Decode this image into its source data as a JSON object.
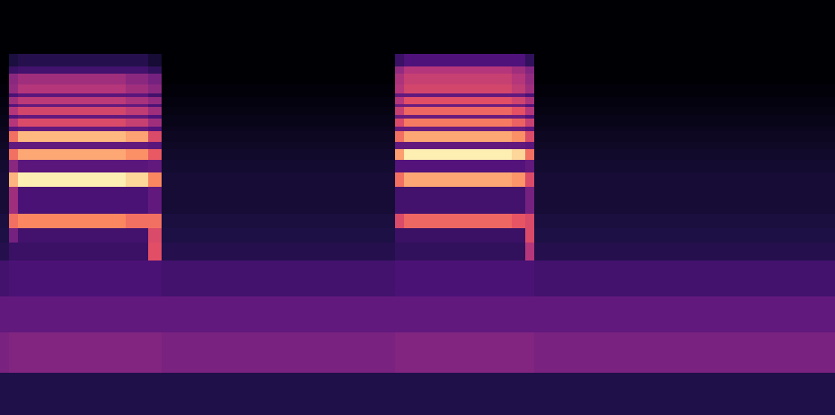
{
  "chart_data": {
    "type": "heatmap",
    "x": [
      0,
      10,
      20,
      60,
      100,
      140,
      165,
      180,
      190,
      300,
      440,
      450,
      490,
      530,
      570,
      585,
      595,
      700,
      800,
      930
    ],
    "y": [
      0,
      47,
      92,
      132,
      172,
      192,
      208,
      224,
      254,
      270,
      284,
      296,
      304,
      316,
      321,
      330,
      334,
      343,
      346,
      354,
      358,
      368,
      380,
      388,
      402,
      462
    ],
    "z": [
      [
        0.14,
        0.14,
        0.14,
        0.14,
        0.14,
        0.14,
        0.14,
        0.14,
        0.14,
        0.14,
        0.14,
        0.14,
        0.14,
        0.14,
        0.14,
        0.14,
        0.14,
        0.14,
        0.14
      ],
      [
        0.36,
        0.38,
        0.38,
        0.38,
        0.38,
        0.38,
        0.38,
        0.36,
        0.36,
        0.36,
        0.38,
        0.38,
        0.38,
        0.38,
        0.38,
        0.38,
        0.36,
        0.36,
        0.36
      ],
      [
        0.3,
        0.3,
        0.3,
        0.3,
        0.3,
        0.3,
        0.3,
        0.3,
        0.3,
        0.3,
        0.3,
        0.3,
        0.3,
        0.3,
        0.3,
        0.3,
        0.3,
        0.3,
        0.3
      ],
      [
        0.22,
        0.24,
        0.24,
        0.24,
        0.24,
        0.24,
        0.24,
        0.22,
        0.22,
        0.22,
        0.24,
        0.24,
        0.24,
        0.24,
        0.24,
        0.24,
        0.22,
        0.22,
        0.22
      ],
      [
        0.15,
        0.2,
        0.2,
        0.2,
        0.2,
        0.2,
        0.62,
        0.15,
        0.15,
        0.15,
        0.18,
        0.18,
        0.18,
        0.18,
        0.18,
        0.5,
        0.15,
        0.15,
        0.15
      ],
      [
        0.13,
        0.35,
        0.22,
        0.22,
        0.22,
        0.22,
        0.6,
        0.13,
        0.13,
        0.13,
        0.2,
        0.2,
        0.2,
        0.2,
        0.2,
        0.6,
        0.13,
        0.13,
        0.13
      ],
      [
        0.12,
        0.7,
        0.75,
        0.75,
        0.75,
        0.7,
        0.7,
        0.12,
        0.12,
        0.12,
        0.6,
        0.68,
        0.68,
        0.68,
        0.64,
        0.6,
        0.12,
        0.12,
        0.12
      ],
      [
        0.1,
        0.45,
        0.24,
        0.24,
        0.24,
        0.24,
        0.3,
        0.1,
        0.1,
        0.1,
        0.22,
        0.22,
        0.22,
        0.22,
        0.22,
        0.35,
        0.1,
        0.1,
        0.1
      ],
      [
        0.1,
        0.85,
        0.97,
        0.97,
        0.97,
        0.92,
        0.75,
        0.1,
        0.1,
        0.1,
        0.7,
        0.82,
        0.82,
        0.82,
        0.78,
        0.6,
        0.1,
        0.1,
        0.1
      ],
      [
        0.09,
        0.4,
        0.28,
        0.28,
        0.28,
        0.28,
        0.3,
        0.09,
        0.09,
        0.09,
        0.26,
        0.26,
        0.26,
        0.26,
        0.26,
        0.3,
        0.09,
        0.09,
        0.09
      ],
      [
        0.08,
        0.7,
        0.82,
        0.82,
        0.82,
        0.77,
        0.65,
        0.08,
        0.08,
        0.08,
        0.8,
        0.97,
        0.97,
        0.97,
        0.92,
        0.7,
        0.08,
        0.08,
        0.08
      ],
      [
        0.07,
        0.3,
        0.3,
        0.3,
        0.3,
        0.3,
        0.28,
        0.07,
        0.07,
        0.07,
        0.3,
        0.3,
        0.3,
        0.3,
        0.3,
        0.28,
        0.07,
        0.07,
        0.07
      ],
      [
        0.06,
        0.7,
        0.86,
        0.86,
        0.86,
        0.81,
        0.6,
        0.06,
        0.06,
        0.06,
        0.7,
        0.82,
        0.82,
        0.82,
        0.77,
        0.6,
        0.06,
        0.06,
        0.06
      ],
      [
        0.05,
        0.28,
        0.3,
        0.3,
        0.3,
        0.3,
        0.26,
        0.05,
        0.05,
        0.05,
        0.32,
        0.32,
        0.32,
        0.32,
        0.32,
        0.28,
        0.05,
        0.05,
        0.05
      ],
      [
        0.04,
        0.5,
        0.6,
        0.6,
        0.6,
        0.55,
        0.45,
        0.04,
        0.04,
        0.04,
        0.6,
        0.72,
        0.72,
        0.72,
        0.67,
        0.55,
        0.04,
        0.04,
        0.04
      ],
      [
        0.04,
        0.26,
        0.3,
        0.3,
        0.3,
        0.3,
        0.25,
        0.04,
        0.04,
        0.04,
        0.32,
        0.32,
        0.32,
        0.32,
        0.32,
        0.26,
        0.04,
        0.04,
        0.04
      ],
      [
        0.03,
        0.5,
        0.58,
        0.58,
        0.58,
        0.53,
        0.45,
        0.03,
        0.03,
        0.03,
        0.55,
        0.68,
        0.68,
        0.68,
        0.63,
        0.5,
        0.03,
        0.03,
        0.03
      ],
      [
        0.02,
        0.26,
        0.3,
        0.3,
        0.3,
        0.3,
        0.24,
        0.02,
        0.02,
        0.02,
        0.32,
        0.32,
        0.32,
        0.32,
        0.32,
        0.25,
        0.02,
        0.02,
        0.02
      ],
      [
        0.02,
        0.45,
        0.52,
        0.52,
        0.52,
        0.47,
        0.42,
        0.02,
        0.02,
        0.02,
        0.5,
        0.62,
        0.62,
        0.62,
        0.57,
        0.48,
        0.02,
        0.02,
        0.02
      ],
      [
        0.01,
        0.24,
        0.28,
        0.28,
        0.28,
        0.28,
        0.22,
        0.01,
        0.01,
        0.01,
        0.3,
        0.3,
        0.3,
        0.3,
        0.3,
        0.24,
        0.01,
        0.01,
        0.01
      ],
      [
        0.01,
        0.42,
        0.5,
        0.5,
        0.5,
        0.45,
        0.4,
        0.01,
        0.01,
        0.01,
        0.5,
        0.58,
        0.58,
        0.58,
        0.53,
        0.45,
        0.01,
        0.01,
        0.01
      ],
      [
        0,
        0.4,
        0.45,
        0.45,
        0.45,
        0.4,
        0.35,
        0,
        0,
        0,
        0.48,
        0.55,
        0.55,
        0.55,
        0.5,
        0.42,
        0,
        0,
        0
      ],
      [
        0,
        0.2,
        0.22,
        0.22,
        0.22,
        0.22,
        0.18,
        0,
        0,
        0,
        0.42,
        0.5,
        0.5,
        0.5,
        0.45,
        0.38,
        0,
        0,
        0
      ],
      [
        0,
        0.12,
        0.15,
        0.15,
        0.15,
        0.15,
        0.1,
        0,
        0,
        0,
        0.2,
        0.25,
        0.25,
        0.25,
        0.25,
        0.18,
        0,
        0,
        0
      ],
      [
        0,
        0,
        0,
        0,
        0,
        0,
        0,
        0,
        0,
        0,
        0,
        0,
        0,
        0,
        0,
        0,
        0,
        0,
        0
      ]
    ],
    "zlim": [
      0,
      1
    ],
    "xlim": [
      0,
      930
    ],
    "ylim": [
      0,
      462
    ],
    "tick_labels": false
  }
}
